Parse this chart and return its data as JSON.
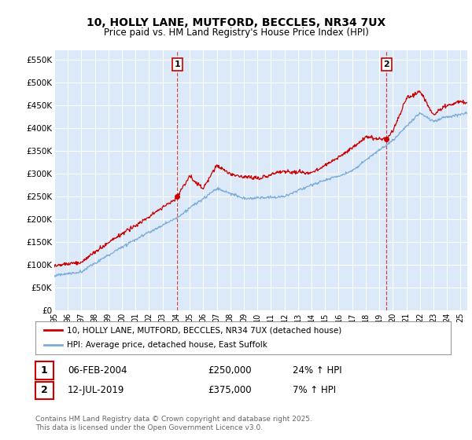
{
  "title_line1": "10, HOLLY LANE, MUTFORD, BECCLES, NR34 7UX",
  "title_line2": "Price paid vs. HM Land Registry's House Price Index (HPI)",
  "ylim": [
    0,
    570000
  ],
  "yticks": [
    0,
    50000,
    100000,
    150000,
    200000,
    250000,
    300000,
    350000,
    400000,
    450000,
    500000,
    550000
  ],
  "ytick_labels": [
    "£0",
    "£50K",
    "£100K",
    "£150K",
    "£200K",
    "£250K",
    "£300K",
    "£350K",
    "£400K",
    "£450K",
    "£500K",
    "£550K"
  ],
  "plot_bg_color": "#dce9f8",
  "grid_color": "#ffffff",
  "sale1_date": "06-FEB-2004",
  "sale1_price": 250000,
  "sale1_hpi_text": "24% ↑ HPI",
  "sale2_date": "12-JUL-2019",
  "sale2_price": 375000,
  "sale2_hpi_text": "7% ↑ HPI",
  "legend_label1": "10, HOLLY LANE, MUTFORD, BECCLES, NR34 7UX (detached house)",
  "legend_label2": "HPI: Average price, detached house, East Suffolk",
  "footer": "Contains HM Land Registry data © Crown copyright and database right 2025.\nThis data is licensed under the Open Government Licence v3.0.",
  "line1_color": "#cc0000",
  "line2_color": "#7aadda",
  "sale1_x": 2004.09,
  "sale2_x": 2019.53,
  "sale1_y": 250000,
  "sale2_y": 375000,
  "xmin": 1995,
  "xmax": 2025.5
}
